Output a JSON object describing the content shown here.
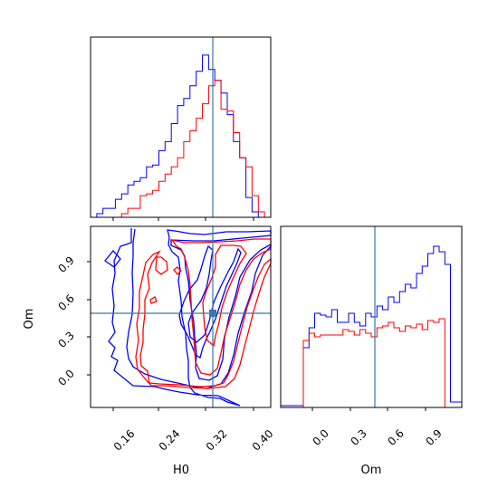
{
  "chart_data": {
    "type": "corner",
    "parameters": [
      "H0",
      "Om"
    ],
    "truths": {
      "H0": 0.335,
      "Om": 0.49
    },
    "truth_color": "#3a78a8",
    "series_colors": [
      "#0000ff",
      "#ff0000"
    ],
    "panels": {
      "hist_H0": {
        "type": "histogram",
        "xlim": [
          0.14,
          0.43
        ],
        "ylim": [
          0,
          1.0
        ],
        "series": [
          {
            "color": "#0000ff",
            "edges": [
              0.14,
              0.15,
              0.16,
              0.17,
              0.18,
              0.19,
              0.2,
              0.21,
              0.22,
              0.23,
              0.24,
              0.25,
              0.26,
              0.27,
              0.28,
              0.29,
              0.3,
              0.31,
              0.32,
              0.33,
              0.34,
              0.35,
              0.36,
              0.37,
              0.38,
              0.39,
              0.4,
              0.41,
              0.42,
              0.43
            ],
            "values": [
              0.0,
              0.02,
              0.05,
              0.05,
              0.1,
              0.13,
              0.18,
              0.2,
              0.22,
              0.28,
              0.29,
              0.37,
              0.42,
              0.52,
              0.62,
              0.66,
              0.73,
              0.81,
              0.9,
              0.82,
              0.76,
              0.69,
              0.57,
              0.42,
              0.33,
              0.11,
              0.03,
              0.0,
              0.0
            ]
          },
          {
            "color": "#ff0000",
            "edges": [
              0.14,
              0.15,
              0.16,
              0.17,
              0.18,
              0.19,
              0.2,
              0.21,
              0.22,
              0.23,
              0.24,
              0.25,
              0.26,
              0.27,
              0.28,
              0.29,
              0.3,
              0.31,
              0.32,
              0.33,
              0.34,
              0.35,
              0.36,
              0.37,
              0.38,
              0.39,
              0.4,
              0.41,
              0.42,
              0.43
            ],
            "values": [
              0.0,
              0.0,
              0.0,
              0.0,
              0.0,
              0.02,
              0.05,
              0.05,
              0.12,
              0.13,
              0.15,
              0.2,
              0.24,
              0.28,
              0.33,
              0.42,
              0.48,
              0.55,
              0.63,
              0.73,
              0.76,
              0.6,
              0.59,
              0.47,
              0.33,
              0.28,
              0.12,
              0.03,
              0.0
            ]
          }
        ]
      },
      "contour_H0_Om": {
        "type": "contour",
        "xlim": [
          0.14,
          0.43
        ],
        "ylim": [
          -0.15,
          1.12
        ],
        "x_ticks": [
          "0.16",
          "0.24",
          "0.32",
          "0.40"
        ],
        "y_ticks": [
          "0.0",
          "0.3",
          "0.6",
          "0.9"
        ],
        "xlabel": "H0",
        "ylabel": "Om"
      },
      "hist_Om": {
        "type": "histogram",
        "xlim": [
          -0.16,
          1.12
        ],
        "ylim": [
          0,
          1.0
        ],
        "x_ticks": [
          "0.0",
          "0.3",
          "0.6",
          "0.9"
        ],
        "xlabel": "Om",
        "series": [
          {
            "color": "#0000ff",
            "edges": [
              -0.16,
              -0.12,
              -0.08,
              -0.04,
              0.0,
              0.04,
              0.08,
              0.12,
              0.16,
              0.2,
              0.24,
              0.28,
              0.32,
              0.36,
              0.4,
              0.44,
              0.48,
              0.52,
              0.56,
              0.6,
              0.64,
              0.68,
              0.72,
              0.76,
              0.8,
              0.84,
              0.88,
              0.92,
              0.96,
              1.0,
              1.04,
              1.08,
              1.12
            ],
            "values": [
              0.01,
              0.01,
              0.01,
              0.01,
              0.33,
              0.44,
              0.52,
              0.51,
              0.5,
              0.54,
              0.47,
              0.47,
              0.52,
              0.47,
              0.45,
              0.52,
              0.5,
              0.56,
              0.54,
              0.61,
              0.58,
              0.64,
              0.68,
              0.66,
              0.74,
              0.78,
              0.85,
              0.89,
              0.86,
              0.79,
              0.03,
              0.03
            ]
          },
          {
            "color": "#ff0000",
            "edges": [
              -0.16,
              -0.12,
              -0.08,
              -0.04,
              0.0,
              0.04,
              0.08,
              0.12,
              0.16,
              0.2,
              0.24,
              0.28,
              0.32,
              0.36,
              0.4,
              0.44,
              0.48,
              0.52,
              0.56,
              0.6,
              0.64,
              0.68,
              0.72,
              0.76,
              0.8,
              0.84,
              0.88,
              0.92,
              0.96,
              1.0,
              1.04,
              1.08,
              1.12
            ],
            "values": [
              0.0,
              0.0,
              0.0,
              0.0,
              0.37,
              0.41,
              0.39,
              0.4,
              0.4,
              0.4,
              0.4,
              0.43,
              0.42,
              0.4,
              0.43,
              0.41,
              0.39,
              0.44,
              0.45,
              0.47,
              0.44,
              0.42,
              0.45,
              0.44,
              0.46,
              0.43,
              0.48,
              0.47,
              0.49,
              0.0,
              0.0,
              0.0
            ]
          }
        ]
      }
    }
  }
}
